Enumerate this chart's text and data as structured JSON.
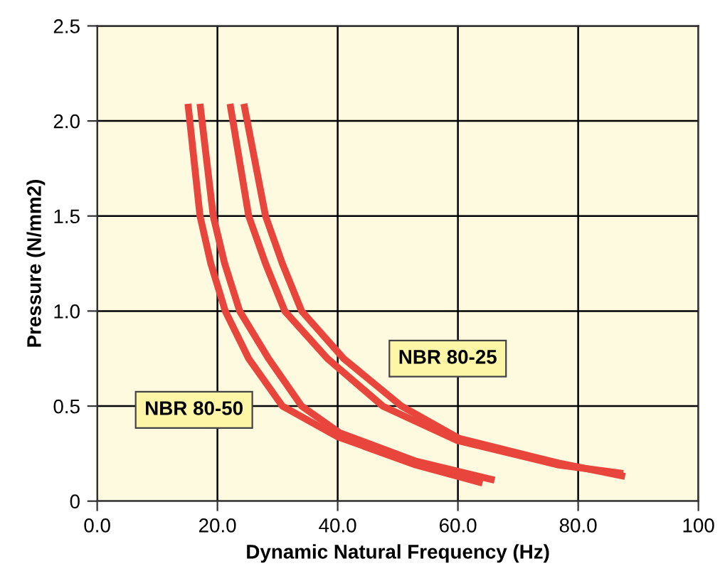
{
  "chart_data": {
    "type": "line",
    "xlabel": "Dynamic Natural Frequency (Hz)",
    "ylabel": "Pressure (N/mm2)",
    "xlim": [
      0,
      100
    ],
    "ylim": [
      0,
      2.5
    ],
    "xticks": [
      {
        "value": 0,
        "label": "0.0"
      },
      {
        "value": 20,
        "label": "20.0"
      },
      {
        "value": 40,
        "label": "40.0"
      },
      {
        "value": 60,
        "label": "60.0"
      },
      {
        "value": 80,
        "label": "80.0"
      },
      100
    ],
    "yticks": [
      0,
      0.5,
      {
        "value": 1,
        "label": "1.0"
      },
      1.5,
      {
        "value": 2,
        "label": "2.0"
      },
      2.5
    ],
    "grid": true,
    "legend": false,
    "marker": "none",
    "line_style": "solid",
    "series": [
      {
        "color": "#e8453c",
        "x": [
          15.1,
          17.1,
          18.9,
          21.3,
          25.2,
          30.8,
          39.9,
          53,
          64.1
        ],
        "values": [
          2.09,
          1.5,
          1.25,
          1.0,
          0.75,
          0.5,
          0.34,
          0.19,
          0.095
        ]
      },
      {
        "color": "#e8453c",
        "x": [
          17.1,
          19.3,
          21.2,
          23.7,
          28.5,
          34,
          40.3,
          53,
          66.1
        ],
        "values": [
          2.09,
          1.5,
          1.25,
          1.0,
          0.75,
          0.5,
          0.36,
          0.21,
          0.11
        ]
      },
      {
        "color": "#e8453c",
        "x": [
          22.1,
          25.2,
          28,
          31.2,
          38.3,
          47.5,
          59.8,
          76.8,
          87.5
        ],
        "values": [
          2.09,
          1.5,
          1.25,
          1.0,
          0.75,
          0.5,
          0.32,
          0.19,
          0.145
        ]
      },
      {
        "color": "#e8453c",
        "x": [
          24.4,
          28,
          30.8,
          34,
          41,
          50.6,
          60.2,
          76.8,
          87.8
        ],
        "values": [
          2.09,
          1.5,
          1.25,
          1.0,
          0.75,
          0.5,
          0.33,
          0.2,
          0.13
        ]
      }
    ],
    "annotations": [
      "NBR 80-50",
      "NBR 80-25"
    ]
  }
}
